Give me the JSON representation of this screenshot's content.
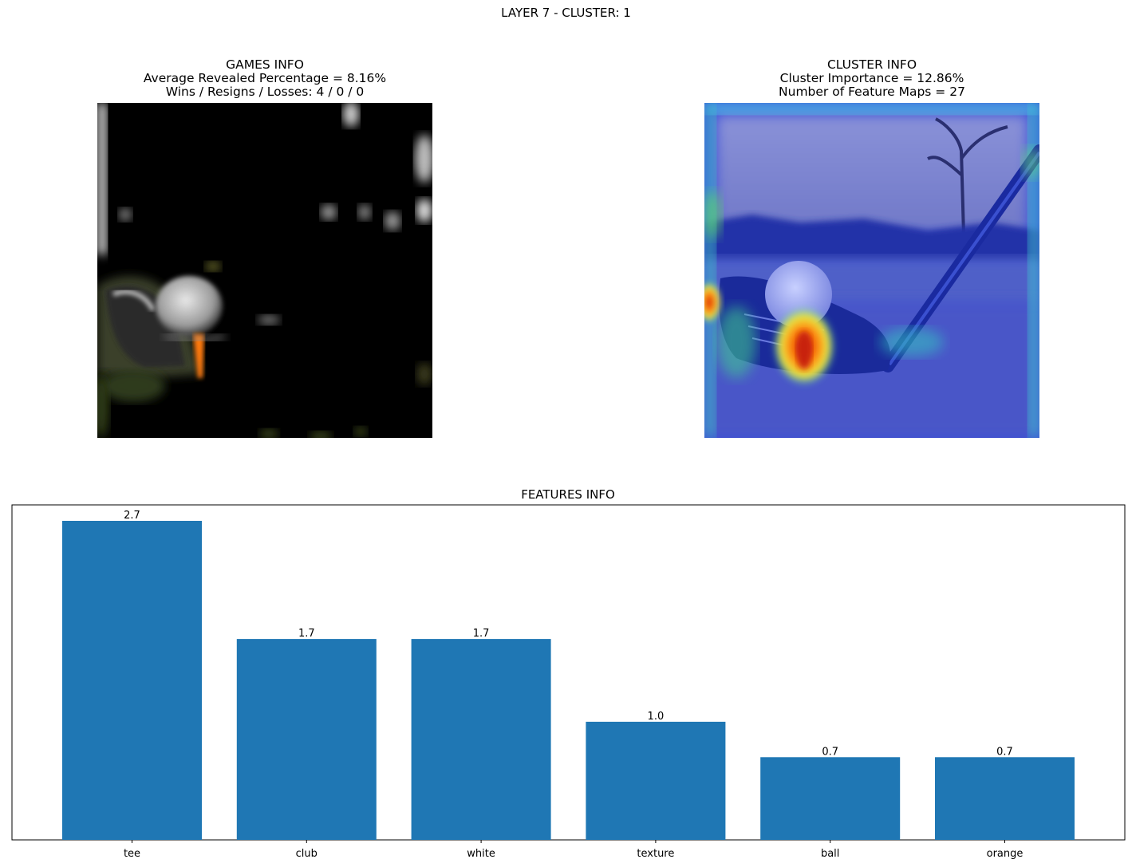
{
  "figure": {
    "suptitle": "LAYER 7 - CLUSTER: 1"
  },
  "games_panel": {
    "title": "GAMES INFO",
    "line1": "Average Revealed Percentage = 8.16%",
    "line2": "Wins / Resigns / Losses: 4 / 0 / 0",
    "image": "masked golf tee image"
  },
  "cluster_panel": {
    "title": "CLUSTER INFO",
    "line1": "Cluster Importance = 12.86%",
    "line2": "Number of Feature Maps = 27",
    "image": "golf heatmap overlay image"
  },
  "chart_data": {
    "type": "bar",
    "title": "FEATURES INFO",
    "categories": [
      "tee",
      "club",
      "white",
      "texture",
      "ball",
      "orange"
    ],
    "values": [
      2.7,
      1.7,
      1.7,
      1.0,
      0.7,
      0.7
    ],
    "value_labels": [
      "2.7",
      "1.7",
      "1.7",
      "1.0",
      "0.7",
      "0.7"
    ],
    "xlabel": "",
    "ylabel": "",
    "ylim": [
      0,
      2.7
    ],
    "grid": false,
    "bar_color": "#1f77b4"
  }
}
